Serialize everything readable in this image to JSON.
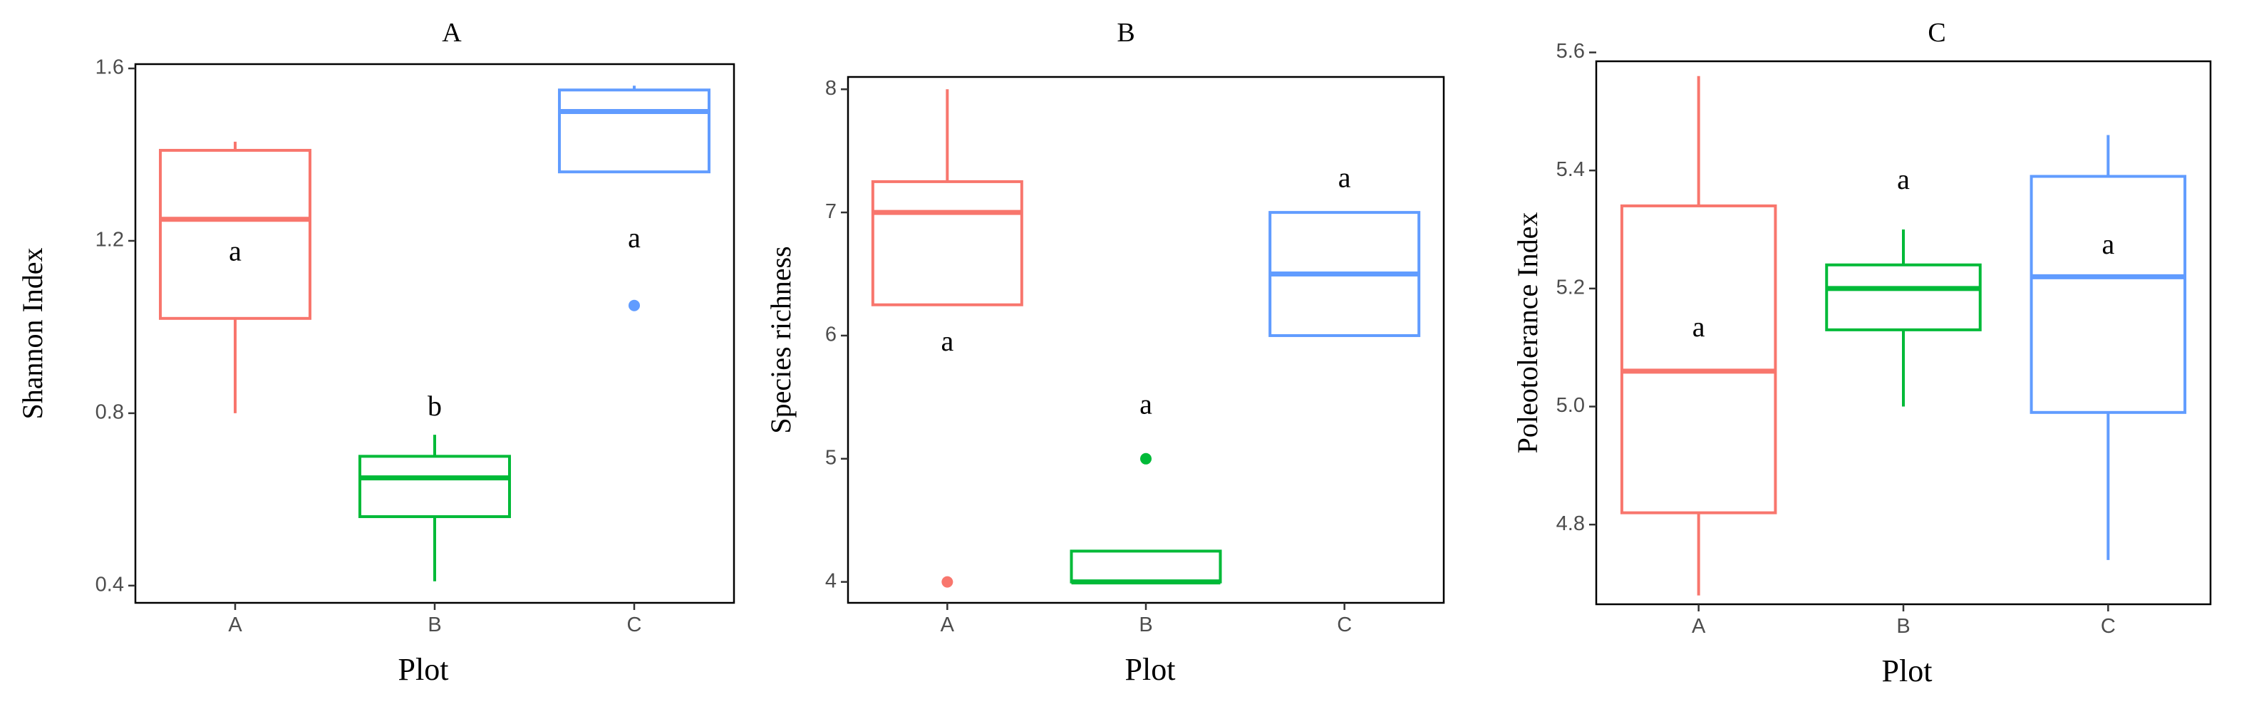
{
  "colors": {
    "A": "#F8766D",
    "B": "#00BA38",
    "C": "#619CFF"
  },
  "chart_data": [
    {
      "type": "box",
      "title": "A",
      "xlabel": "Plot",
      "ylabel": "Shannon Index",
      "categories": [
        "A",
        "B",
        "C"
      ],
      "ylim": [
        0.36,
        1.61
      ],
      "yticks": [
        0.4,
        0.8,
        1.2,
        1.6
      ],
      "ytick_labels": [
        "0.4",
        "0.8",
        "1.2",
        "1.6"
      ],
      "boxes": [
        {
          "group": "A",
          "min": 0.8,
          "q1": 1.02,
          "median": 1.25,
          "q3": 1.41,
          "max": 1.43,
          "outliers": [],
          "letter": "a",
          "letter_y": 1.17
        },
        {
          "group": "B",
          "min": 0.41,
          "q1": 0.56,
          "median": 0.65,
          "q3": 0.7,
          "max": 0.75,
          "outliers": [],
          "letter": "b",
          "letter_y": 0.81
        },
        {
          "group": "C",
          "min": 1.36,
          "q1": 1.36,
          "median": 1.5,
          "q3": 1.55,
          "max": 1.56,
          "outliers": [
            1.05
          ],
          "letter": "a",
          "letter_y": 1.2
        }
      ]
    },
    {
      "type": "box",
      "title": "B",
      "xlabel": "Plot",
      "ylabel": "Species richness",
      "categories": [
        "A",
        "B",
        "C"
      ],
      "ylim": [
        3.83,
        8.1
      ],
      "yticks": [
        4,
        5,
        6,
        7,
        8
      ],
      "ytick_labels": [
        "4",
        "5",
        "6",
        "7",
        "8"
      ],
      "boxes": [
        {
          "group": "A",
          "min": 6.25,
          "q1": 6.25,
          "median": 7.0,
          "q3": 7.25,
          "max": 8.0,
          "outliers": [
            4.0
          ],
          "letter": "a",
          "letter_y": 5.93
        },
        {
          "group": "B",
          "min": 4.0,
          "q1": 4.0,
          "median": 4.0,
          "q3": 4.25,
          "max": 4.25,
          "outliers": [
            5.0
          ],
          "letter": "a",
          "letter_y": 5.42
        },
        {
          "group": "C",
          "min": 6.0,
          "q1": 6.0,
          "median": 6.5,
          "q3": 7.0,
          "max": 7.0,
          "outliers": [],
          "letter": "a",
          "letter_y": 7.26
        }
      ]
    },
    {
      "type": "box",
      "title": "C",
      "xlabel": "Plot",
      "ylabel": "Poleotolerance Index",
      "categories": [
        "A",
        "B",
        "C"
      ],
      "ylim": [
        4.665,
        5.585
      ],
      "yticks": [
        4.8,
        5.0,
        5.2,
        5.4,
        5.6
      ],
      "ytick_labels": [
        "4.8",
        "5.0",
        "5.2",
        "5.4",
        "5.6"
      ],
      "boxes": [
        {
          "group": "A",
          "min": 4.68,
          "q1": 4.82,
          "median": 5.06,
          "q3": 5.34,
          "max": 5.56,
          "outliers": [],
          "letter": "a",
          "letter_y": 5.13
        },
        {
          "group": "B",
          "min": 5.0,
          "q1": 5.13,
          "median": 5.2,
          "q3": 5.24,
          "max": 5.3,
          "outliers": [],
          "letter": "a",
          "letter_y": 5.38
        },
        {
          "group": "C",
          "min": 4.74,
          "q1": 4.99,
          "median": 5.22,
          "q3": 5.39,
          "max": 5.46,
          "outliers": [],
          "letter": "a",
          "letter_y": 5.27
        }
      ]
    }
  ]
}
